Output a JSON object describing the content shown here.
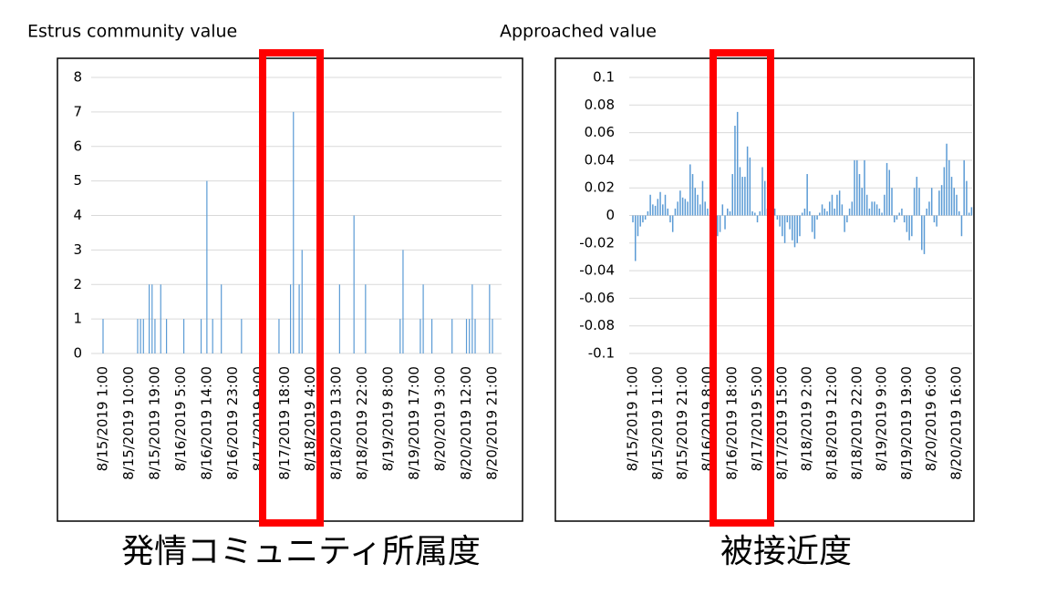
{
  "chart_data": [
    {
      "type": "bar",
      "title": "Estrus community value",
      "caption": "発情コミュニティ所属度",
      "color": "#5b9bd5",
      "grid": true,
      "ylim": [
        0,
        8
      ],
      "yticks": [
        0,
        1,
        2,
        3,
        4,
        5,
        6,
        7,
        8
      ],
      "categories": [
        "8/15/2019 1:00",
        null,
        null,
        null,
        null,
        null,
        null,
        null,
        null,
        "8/15/2019 10:00",
        null,
        null,
        null,
        null,
        null,
        null,
        null,
        null,
        "8/15/2019 19:00",
        null,
        null,
        null,
        null,
        null,
        null,
        null,
        null,
        "8/16/2019 5:00",
        null,
        null,
        null,
        null,
        null,
        null,
        null,
        null,
        "8/16/2019 14:00",
        null,
        null,
        null,
        null,
        null,
        null,
        null,
        null,
        "8/16/2019 23:00",
        null,
        null,
        null,
        null,
        null,
        null,
        null,
        null,
        "8/17/2019 9:00",
        null,
        null,
        null,
        null,
        null,
        null,
        null,
        null,
        "8/17/2019 18:00",
        null,
        null,
        null,
        null,
        null,
        null,
        null,
        null,
        "8/18/2019 4:00",
        null,
        null,
        null,
        null,
        null,
        null,
        null,
        null,
        "8/18/2019 13:00",
        null,
        null,
        null,
        null,
        null,
        null,
        null,
        null,
        "8/18/2019 22:00",
        null,
        null,
        null,
        null,
        null,
        null,
        null,
        null,
        "8/19/2019 8:00",
        null,
        null,
        null,
        null,
        null,
        null,
        null,
        null,
        "8/19/2019 17:00",
        null,
        null,
        null,
        null,
        null,
        null,
        null,
        null,
        "8/20/2019 3:00",
        null,
        null,
        null,
        null,
        null,
        null,
        null,
        null,
        "8/20/2019 12:00",
        null,
        null,
        null,
        null,
        null,
        null,
        null,
        null,
        "8/20/2019 21:00",
        null,
        null,
        null
      ],
      "values": [
        1,
        0,
        0,
        0,
        0,
        0,
        0,
        0,
        0,
        0,
        0,
        0,
        1,
        1,
        1,
        0,
        2,
        2,
        1,
        0,
        2,
        0,
        1,
        0,
        0,
        0,
        0,
        0,
        1,
        0,
        0,
        0,
        0,
        0,
        1,
        0,
        5,
        0,
        1,
        0,
        0,
        2,
        0,
        0,
        0,
        0,
        0,
        0,
        1,
        0,
        0,
        0,
        0,
        0,
        0,
        0,
        0,
        0,
        0,
        0,
        0,
        1,
        0,
        0,
        0,
        2,
        7,
        0,
        2,
        3,
        0,
        0,
        0,
        0,
        0,
        0,
        0,
        0,
        0,
        0,
        0,
        0,
        2,
        0,
        0,
        0,
        0,
        4,
        0,
        0,
        0,
        2,
        0,
        0,
        0,
        0,
        0,
        0,
        0,
        0,
        0,
        0,
        0,
        1,
        3,
        0,
        0,
        0,
        0,
        0,
        1,
        2,
        0,
        0,
        1,
        0,
        0,
        0,
        0,
        0,
        0,
        1,
        0,
        0,
        0,
        0,
        1,
        1,
        2,
        1,
        0,
        0,
        0,
        0,
        2,
        1,
        0,
        0,
        0
      ]
    },
    {
      "type": "bar",
      "title": "Approached value",
      "caption": "被接近度",
      "color": "#5b9bd5",
      "grid": true,
      "ylim": [
        -0.1,
        0.1
      ],
      "yticks": [
        -0.1,
        -0.08,
        -0.06,
        -0.04,
        -0.02,
        0,
        0.02,
        0.04,
        0.06,
        0.08,
        0.1
      ],
      "categories": [
        "8/15/2019 1:00",
        null,
        null,
        null,
        null,
        null,
        null,
        null,
        null,
        null,
        "8/15/2019 11:00",
        null,
        null,
        null,
        null,
        null,
        null,
        null,
        null,
        null,
        "8/15/2019 21:00",
        null,
        null,
        null,
        null,
        null,
        null,
        null,
        null,
        null,
        "8/16/2019 8:00",
        null,
        null,
        null,
        null,
        null,
        null,
        null,
        null,
        null,
        "8/16/2019 18:00",
        null,
        null,
        null,
        null,
        null,
        null,
        null,
        null,
        null,
        "8/17/2019 5:00",
        null,
        null,
        null,
        null,
        null,
        null,
        null,
        null,
        null,
        "8/17/2019 15:00",
        null,
        null,
        null,
        null,
        null,
        null,
        null,
        null,
        null,
        "8/18/2019 2:00",
        null,
        null,
        null,
        null,
        null,
        null,
        null,
        null,
        null,
        "8/18/2019 12:00",
        null,
        null,
        null,
        null,
        null,
        null,
        null,
        null,
        null,
        "8/18/2019 22:00",
        null,
        null,
        null,
        null,
        null,
        null,
        null,
        null,
        null,
        "8/19/2019 9:00",
        null,
        null,
        null,
        null,
        null,
        null,
        null,
        null,
        null,
        "8/19/2019 19:00",
        null,
        null,
        null,
        null,
        null,
        null,
        null,
        null,
        null,
        "8/20/2019 6:00",
        null,
        null,
        null,
        null,
        null,
        null,
        null,
        null,
        null,
        "8/20/2019 16:00",
        null,
        null,
        null,
        null,
        null,
        null
      ],
      "values": [
        -0.005,
        -0.033,
        -0.015,
        -0.008,
        -0.005,
        -0.003,
        0.003,
        0.015,
        0.008,
        0.007,
        0.012,
        0.017,
        0.008,
        0.015,
        0.005,
        -0.005,
        -0.012,
        0.005,
        0.01,
        0.018,
        0.013,
        0.012,
        0.01,
        0.037,
        0.03,
        0.02,
        0.015,
        0.008,
        0.025,
        0.01,
        0.005,
        0.002,
        -0.005,
        -0.018,
        -0.015,
        -0.012,
        0.008,
        -0.01,
        0.005,
        0.003,
        0.03,
        0.065,
        0.075,
        0.035,
        0.028,
        0.028,
        0.05,
        0.042,
        0.003,
        0.002,
        -0.005,
        0.003,
        0.035,
        0.025,
        0.005,
        0.012,
        0.008,
        0.005,
        -0.003,
        -0.008,
        -0.015,
        -0.02,
        -0.005,
        -0.01,
        -0.018,
        -0.023,
        -0.02,
        -0.015,
        0.002,
        0.005,
        0.03,
        0.003,
        -0.012,
        -0.017,
        -0.003,
        0.002,
        0.008,
        0.005,
        0.003,
        0.01,
        0.015,
        0.005,
        0.015,
        0.018,
        0.008,
        -0.012,
        -0.005,
        0.005,
        0.01,
        0.04,
        0.04,
        0.03,
        0.02,
        0.04,
        0.015,
        0.005,
        0.01,
        0.01,
        0.008,
        0.005,
        0.002,
        0.015,
        0.038,
        0.033,
        0.02,
        -0.005,
        -0.003,
        0.002,
        0.005,
        -0.005,
        -0.012,
        -0.018,
        -0.015,
        0.02,
        0.028,
        0.02,
        -0.025,
        -0.028,
        0.005,
        0.01,
        0.02,
        -0.005,
        -0.008,
        0.018,
        0.022,
        0.035,
        0.052,
        0.04,
        0.028,
        0.02,
        0.015,
        0.003,
        -0.015,
        0.04,
        0.025,
        0.002,
        0.006
      ]
    }
  ]
}
